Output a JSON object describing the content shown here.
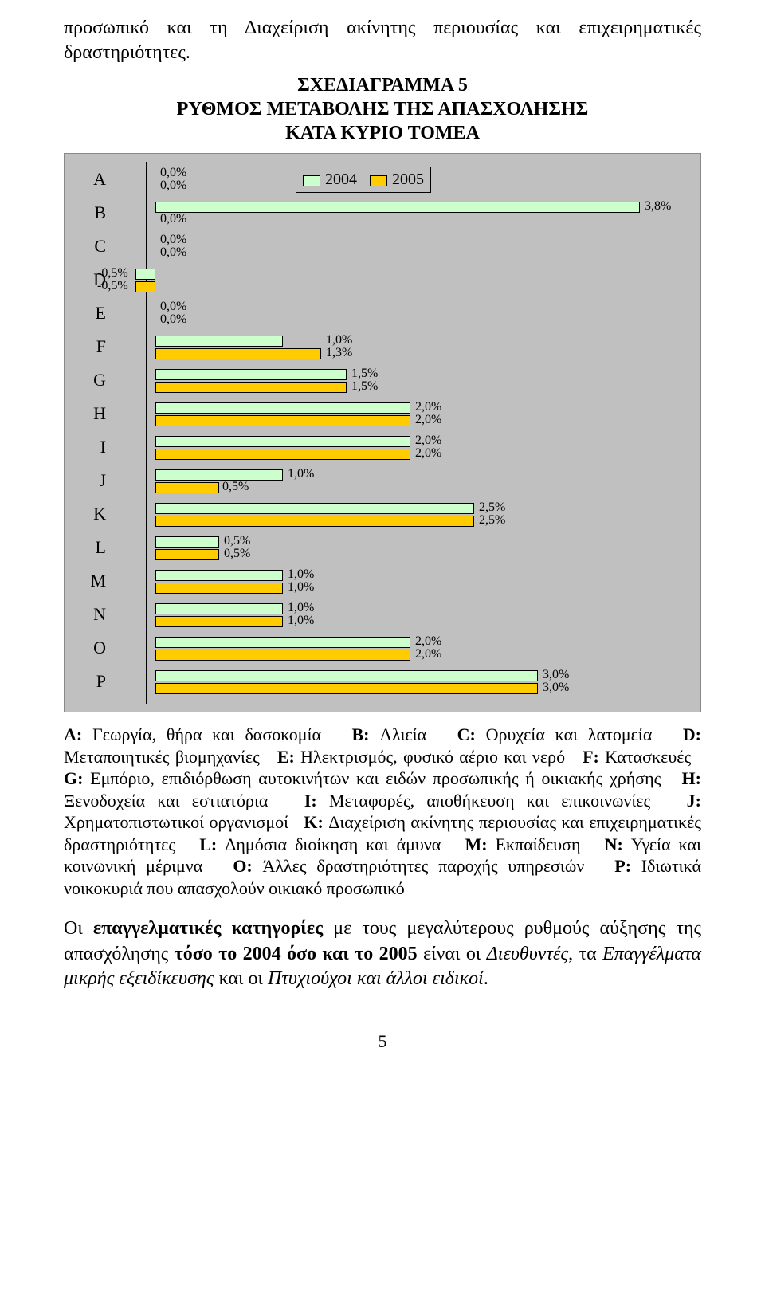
{
  "intro_text": "προσωπικό και τη Διαχείριση ακίνητης περιουσίας και επιχειρηματικές δραστηριότητες.",
  "chart": {
    "title_lines": [
      "ΣΧΕΔΙΑΓΡΑΜΜΑ 5",
      "ΡΥΘΜΟΣ ΜΕΤΑΒΟΛΗΣ ΤΗΣ ΑΠΑΣΧΟΛΗΣΗΣ",
      "ΚΑΤΑ ΚΥΡΙΟ ΤΟΜΕΑ"
    ],
    "legend": {
      "s1": "2004",
      "s2": "2005"
    },
    "colors": {
      "s1_fill": "#ccffcc",
      "s2_fill": "#ffcc00",
      "border": "#000000",
      "panel_bg": "#c0c0c0"
    },
    "xmin": -1.0,
    "xmax": 4.0,
    "categories": [
      "A",
      "B",
      "C",
      "D",
      "E",
      "F",
      "G",
      "H",
      "I",
      "J",
      "K",
      "L",
      "M",
      "N",
      "O",
      "P"
    ],
    "data": {
      "A": {
        "v1": 0.0,
        "v2": 0.0,
        "l1": "0,0%",
        "l2": "0,0%"
      },
      "B": {
        "v1": 3.8,
        "v2": 0.0,
        "l1": "3,8%",
        "l2": "0,0%",
        "l1_right": true
      },
      "C": {
        "v1": 0.0,
        "v2": 0.0,
        "l1": "0,0%",
        "l2": "0,0%"
      },
      "D": {
        "v1": -0.5,
        "v2": -0.5,
        "l1": "-0,5%",
        "l2": "-0,5%",
        "neg": true
      },
      "E": {
        "v1": 0.0,
        "v2": 0.0,
        "l1": "0,0%",
        "l2": "0,0%"
      },
      "F": {
        "v1": 1.0,
        "v2": 1.3,
        "l1": "1,0%",
        "l2": "1,3%"
      },
      "G": {
        "v1": 1.5,
        "v2": 1.5,
        "l1": "1,5%",
        "l2": "1,5%"
      },
      "H": {
        "v1": 2.0,
        "v2": 2.0,
        "l1": "2,0%",
        "l2": "2,0%"
      },
      "I": {
        "v1": 2.0,
        "v2": 2.0,
        "l1": "2,0%",
        "l2": "2,0%"
      },
      "J": {
        "v1": 1.0,
        "v2": 0.5,
        "l1": "1,0%",
        "l2": "0,5%"
      },
      "K": {
        "v1": 2.5,
        "v2": 2.5,
        "l1": "2,5%",
        "l2": "2,5%"
      },
      "L": {
        "v1": 0.5,
        "v2": 0.5,
        "l1": "0,5%",
        "l2": "0,5%"
      },
      "M": {
        "v1": 1.0,
        "v2": 1.0,
        "l1": "1,0%",
        "l2": "1,0%"
      },
      "N": {
        "v1": 1.0,
        "v2": 1.0,
        "l1": "1,0%",
        "l2": "1,0%"
      },
      "O": {
        "v1": 2.0,
        "v2": 2.0,
        "l1": "2,0%",
        "l2": "2,0%"
      },
      "P": {
        "v1": 3.0,
        "v2": 3.0,
        "l1": "3,0%",
        "l2": "3,0%"
      }
    }
  },
  "defs": {
    "A": "Γεωργία, θήρα και δασοκομία",
    "B": "Αλιεία",
    "C": "Ορυχεία και λατομεία",
    "D": "Μεταποιητικές βιομηχανίες",
    "E": "Ηλεκτρισμός, φυσικό αέριο και νερό",
    "F": "Κατασκευές",
    "G": "Εμπόριο, επιδιόρθωση αυτοκινήτων και ειδών προσωπικής ή οικιακής χρήσης",
    "H": "Ξενοδοχεία και εστιατόρια",
    "I": "Μεταφορές, αποθήκευση και επικοινωνίες",
    "J": "Χρηματοπιστωτικοί οργανισμοί",
    "K": "Διαχείριση ακίνητης περιουσίας και επιχειρηματικές δραστηριότητες",
    "L": "Δημόσια διοίκηση και άμυνα",
    "M": "Εκπαίδευση",
    "N": "Υγεία και κοινωνική μέριμνα",
    "O": "Άλλες δραστηριότητες παροχής υπηρεσιών",
    "P": "Ιδιωτικά νοικοκυριά που απασχολούν οικιακό προσωπικό"
  },
  "closing_parts": {
    "t1": "Οι ",
    "b1": "επαγγελματικές κατηγορίες",
    "t2": " με τους μεγαλύτερους ρυθμούς αύξησης της απασχόλησης ",
    "b2": "τόσο το 2004 όσο και το 2005",
    "t3": " είναι οι ",
    "i1": "Διευθυντές",
    "t4": ", τα ",
    "i2": "Επαγγέλματα μικρής εξειδίκευσης",
    "t5": " και οι ",
    "i3": "Πτυχιούχοι και άλλοι ειδικοί",
    "t6": "."
  },
  "page_number": "5"
}
